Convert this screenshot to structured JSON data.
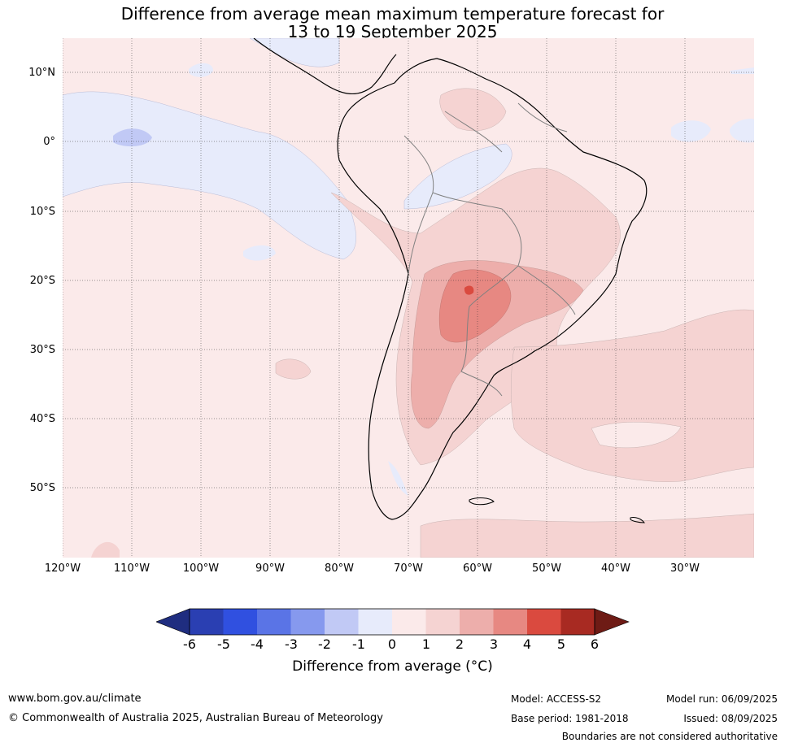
{
  "title_line1": "Difference from average mean maximum temperature forecast for",
  "title_line2": "13 to 19 September 2025",
  "lat_labels": [
    "10°N",
    "0°",
    "10°S",
    "20°S",
    "30°S",
    "40°S",
    "50°S"
  ],
  "lon_labels": [
    "120°W",
    "110°W",
    "100°W",
    "90°W",
    "80°W",
    "70°W",
    "60°W",
    "50°W",
    "40°W",
    "30°W"
  ],
  "colorbar": {
    "ticks": [
      "-6",
      "-5",
      "-4",
      "-3",
      "-2",
      "-1",
      "0",
      "1",
      "2",
      "3",
      "4",
      "5",
      "6"
    ],
    "colors": [
      "#1f2d80",
      "#2a3fb2",
      "#3050e0",
      "#5a74e6",
      "#8699ee",
      "#c1c9f5",
      "#e7ebfb",
      "#fbeaea",
      "#f5d3d2",
      "#edaeab",
      "#e78882",
      "#da4a3f",
      "#a82a22",
      "#6e1b15"
    ],
    "label": "Difference from average (°C)"
  },
  "footer": {
    "url": "www.bom.gov.au/climate",
    "copyright": "© Commonwealth of Australia 2025, Australian Bureau of Meteorology",
    "model": "Model: ACCESS-S2",
    "base_period": "Base period: 1981-2018",
    "model_run": "Model run: 06/09/2025",
    "issued": "Issued: 08/09/2025",
    "disclaimer": "Boundaries are not considered authoritative"
  }
}
